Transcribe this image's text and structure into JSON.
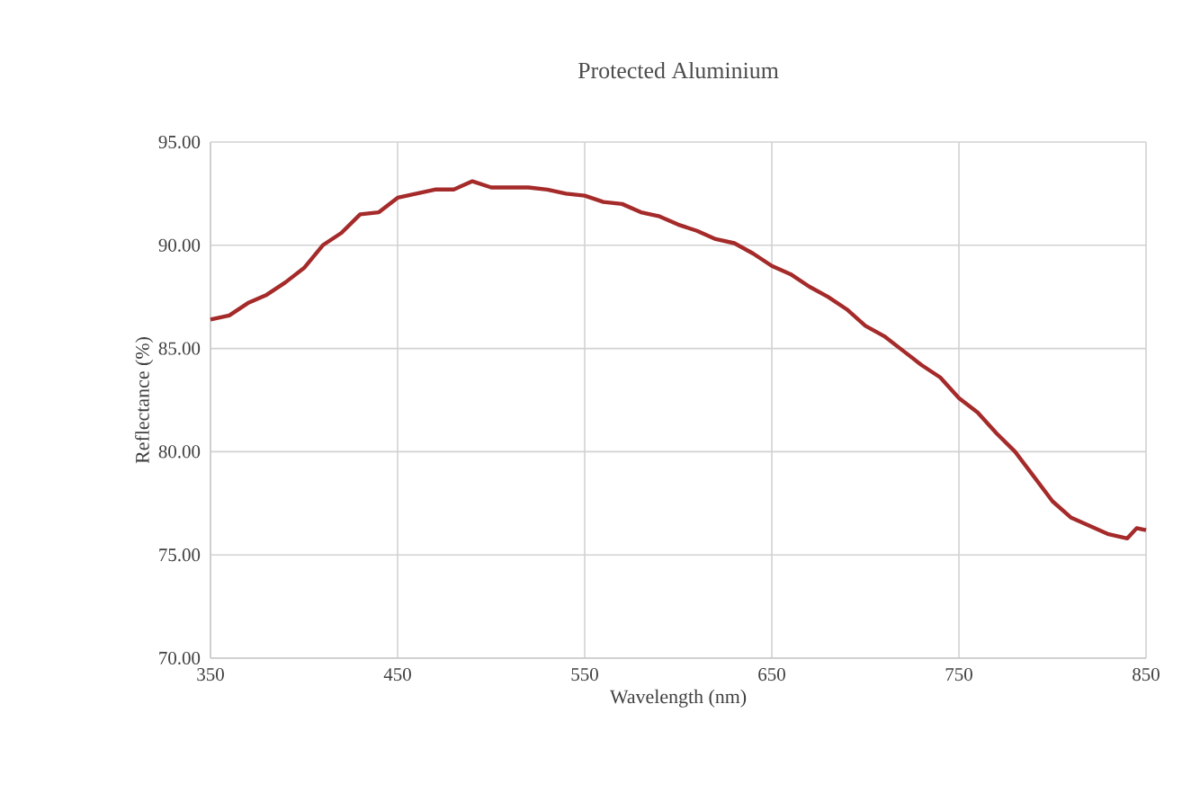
{
  "chart_data": {
    "type": "line",
    "title": "Protected Aluminium",
    "xlabel": "Wavelength (nm)",
    "ylabel": "Reflectance (%)",
    "x": [
      350,
      360,
      370,
      380,
      390,
      400,
      410,
      420,
      430,
      440,
      450,
      460,
      470,
      480,
      490,
      500,
      510,
      520,
      530,
      540,
      550,
      560,
      570,
      580,
      590,
      600,
      610,
      620,
      630,
      640,
      650,
      660,
      670,
      680,
      690,
      700,
      710,
      720,
      730,
      740,
      750,
      760,
      770,
      780,
      790,
      800,
      810,
      820,
      830,
      840,
      845,
      850
    ],
    "series": [
      {
        "color": "#a52a2a",
        "values": [
          86.4,
          86.6,
          87.2,
          87.6,
          88.2,
          88.9,
          90.0,
          90.6,
          91.5,
          91.6,
          92.3,
          92.5,
          92.7,
          92.7,
          93.1,
          92.8,
          92.8,
          92.8,
          92.7,
          92.5,
          92.4,
          92.1,
          92.0,
          91.6,
          91.4,
          91.0,
          90.7,
          90.3,
          90.1,
          89.6,
          89.0,
          88.6,
          88.0,
          87.5,
          86.9,
          86.1,
          85.6,
          84.9,
          84.2,
          83.6,
          82.6,
          81.9,
          80.9,
          80.0,
          78.8,
          77.6,
          76.8,
          76.4,
          76.0,
          75.8,
          76.3,
          76.2
        ]
      }
    ],
    "xlim": [
      350,
      850
    ],
    "ylim": [
      70,
      95
    ],
    "xticks": [
      350,
      450,
      550,
      650,
      750,
      850
    ],
    "yticks": [
      {
        "value": 70,
        "label": "70.00"
      },
      {
        "value": 75,
        "label": "75.00"
      },
      {
        "value": 80,
        "label": "80.00"
      },
      {
        "value": 85,
        "label": "85.00"
      },
      {
        "value": 90,
        "label": "90.00"
      },
      {
        "value": 95,
        "label": "95.00"
      }
    ],
    "grid": true
  }
}
